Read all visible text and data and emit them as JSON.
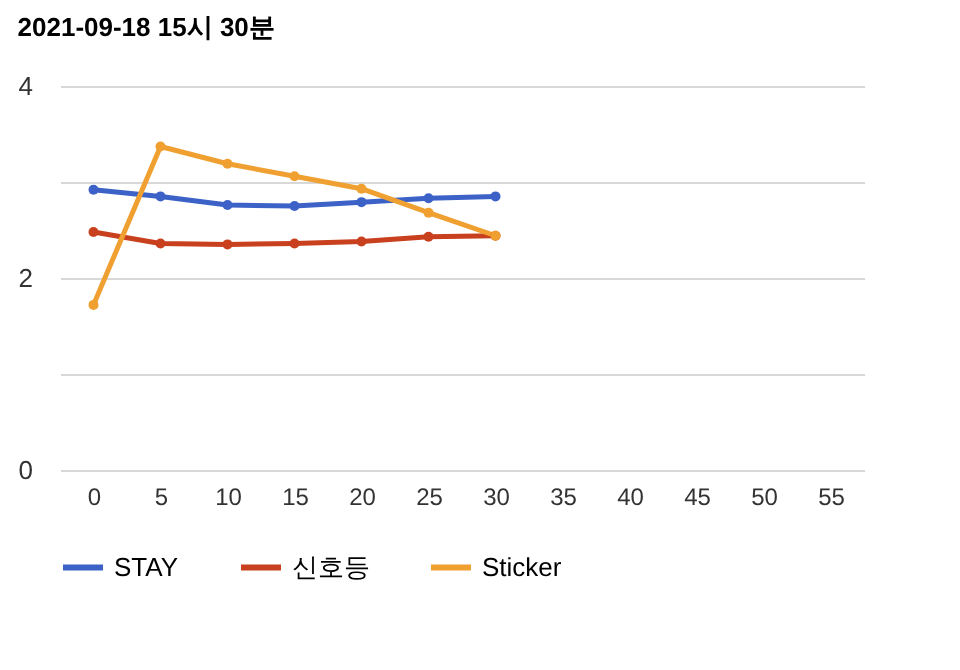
{
  "chart_data": {
    "type": "line",
    "title": "2021-09-18 15시 30분",
    "x": [
      0,
      5,
      10,
      15,
      20,
      25,
      30
    ],
    "series": [
      {
        "name": "STAY",
        "color": "#3c62c8",
        "values": [
          2.92,
          2.85,
          2.76,
          2.75,
          2.79,
          2.83,
          2.85
        ]
      },
      {
        "name": "신호등",
        "color": "#c8401e",
        "values": [
          2.48,
          2.36,
          2.35,
          2.36,
          2.38,
          2.43,
          2.44
        ]
      },
      {
        "name": "Sticker",
        "color": "#f0a030",
        "values": [
          1.72,
          3.37,
          3.19,
          3.06,
          2.93,
          2.68,
          2.44
        ]
      }
    ],
    "xlim": [
      -2.5,
      57.5
    ],
    "xticks": [
      0,
      5,
      10,
      15,
      20,
      25,
      30,
      35,
      40,
      45,
      50,
      55
    ],
    "ylim": [
      0,
      4
    ],
    "yticks": [
      0,
      {
        "value": 1,
        "label": null
      },
      2,
      {
        "value": 3,
        "label": null
      },
      4
    ],
    "grid": "y",
    "legend": "bottom",
    "marker": "circle",
    "line_style": "solid"
  }
}
